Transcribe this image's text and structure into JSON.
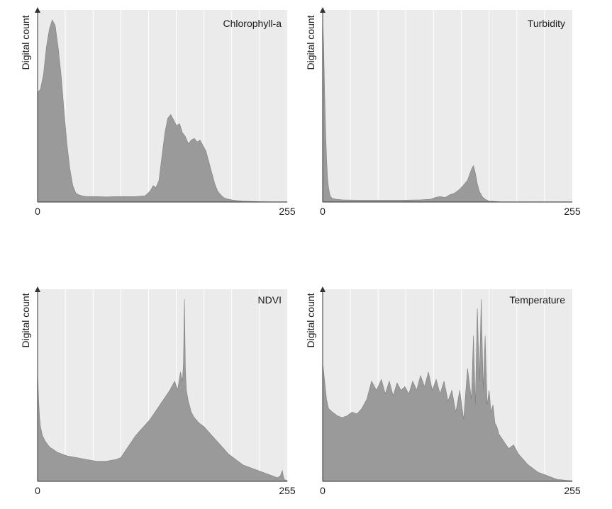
{
  "chart_data": [
    {
      "type": "area",
      "title": "Chlorophyll-a",
      "ylabel": "Digital count",
      "xlabel": "",
      "xlim": [
        0,
        255
      ],
      "x_tick_labels": [
        "0",
        "255"
      ],
      "grid": "vertical",
      "fill_color": "#9a9a9a",
      "background_color": "#ebebeb",
      "x": [
        0,
        3,
        6,
        9,
        12,
        15,
        18,
        21,
        24,
        27,
        30,
        33,
        36,
        39,
        42,
        45,
        50,
        60,
        70,
        80,
        90,
        100,
        110,
        115,
        118,
        121,
        124,
        127,
        130,
        133,
        136,
        139,
        142,
        145,
        148,
        151,
        154,
        157,
        160,
        163,
        166,
        169,
        172,
        175,
        178,
        181,
        184,
        187,
        190,
        195,
        200,
        210,
        220,
        230,
        240,
        255
      ],
      "values": [
        0.6,
        0.62,
        0.7,
        0.85,
        0.95,
        1.0,
        0.97,
        0.85,
        0.7,
        0.5,
        0.32,
        0.18,
        0.09,
        0.05,
        0.04,
        0.035,
        0.03,
        0.03,
        0.028,
        0.03,
        0.03,
        0.03,
        0.035,
        0.06,
        0.09,
        0.08,
        0.12,
        0.25,
        0.38,
        0.46,
        0.48,
        0.45,
        0.42,
        0.43,
        0.38,
        0.36,
        0.32,
        0.34,
        0.35,
        0.33,
        0.34,
        0.31,
        0.28,
        0.22,
        0.16,
        0.1,
        0.06,
        0.04,
        0.025,
        0.015,
        0.01,
        0.005,
        0.003,
        0.002,
        0.001,
        0.001
      ]
    },
    {
      "type": "area",
      "title": "Turbidity",
      "ylabel": "Digital count",
      "xlabel": "",
      "xlim": [
        0,
        255
      ],
      "x_tick_labels": [
        "0",
        "255"
      ],
      "grid": "vertical",
      "fill_color": "#9a9a9a",
      "background_color": "#ebebeb",
      "x": [
        0,
        1,
        2,
        3,
        4,
        5,
        6,
        7,
        8,
        10,
        14,
        20,
        40,
        60,
        80,
        100,
        110,
        115,
        120,
        125,
        130,
        135,
        140,
        145,
        148,
        150,
        152,
        154,
        156,
        158,
        160,
        163,
        166,
        170,
        180,
        200,
        255
      ],
      "values": [
        1.0,
        0.85,
        0.6,
        0.4,
        0.24,
        0.13,
        0.08,
        0.05,
        0.03,
        0.02,
        0.015,
        0.012,
        0.01,
        0.01,
        0.01,
        0.012,
        0.015,
        0.025,
        0.03,
        0.025,
        0.04,
        0.05,
        0.07,
        0.1,
        0.12,
        0.15,
        0.18,
        0.2,
        0.16,
        0.1,
        0.06,
        0.03,
        0.015,
        0.005,
        0.002,
        0.001,
        0.001
      ]
    },
    {
      "type": "area",
      "title": "NDVI",
      "ylabel": "Digital count",
      "xlabel": "",
      "xlim": [
        0,
        255
      ],
      "x_tick_labels": [
        "0",
        "255"
      ],
      "grid": "vertical",
      "fill_color": "#9a9a9a",
      "background_color": "#ebebeb",
      "x": [
        0,
        1,
        2,
        3,
        5,
        8,
        12,
        20,
        30,
        40,
        50,
        60,
        70,
        80,
        85,
        90,
        95,
        100,
        105,
        110,
        115,
        120,
        125,
        130,
        135,
        140,
        143,
        146,
        148,
        149,
        150,
        151,
        152,
        154,
        157,
        160,
        165,
        170,
        175,
        180,
        185,
        190,
        195,
        200,
        205,
        210,
        220,
        230,
        240,
        245,
        248,
        250,
        251,
        252,
        255
      ],
      "values": [
        0.6,
        0.45,
        0.35,
        0.3,
        0.25,
        0.22,
        0.19,
        0.16,
        0.14,
        0.13,
        0.12,
        0.11,
        0.11,
        0.12,
        0.13,
        0.17,
        0.21,
        0.25,
        0.28,
        0.31,
        0.34,
        0.38,
        0.42,
        0.46,
        0.5,
        0.55,
        0.5,
        0.6,
        0.55,
        0.65,
        1.0,
        0.62,
        0.5,
        0.44,
        0.38,
        0.35,
        0.32,
        0.3,
        0.27,
        0.24,
        0.21,
        0.18,
        0.15,
        0.13,
        0.11,
        0.09,
        0.07,
        0.05,
        0.03,
        0.02,
        0.03,
        0.06,
        0.03,
        0.01,
        0.005
      ]
    },
    {
      "type": "area",
      "title": "Temperature",
      "ylabel": "Digital count",
      "xlabel": "",
      "xlim": [
        0,
        255
      ],
      "x_tick_labels": [
        "0",
        "255"
      ],
      "grid": "vertical",
      "fill_color": "#9a9a9a",
      "background_color": "#ebebeb",
      "x": [
        0,
        2,
        4,
        6,
        10,
        15,
        20,
        25,
        30,
        35,
        40,
        45,
        50,
        55,
        60,
        64,
        68,
        72,
        76,
        80,
        84,
        88,
        92,
        96,
        100,
        104,
        108,
        112,
        116,
        120,
        124,
        128,
        132,
        136,
        140,
        144,
        148,
        152,
        154,
        156,
        158,
        160,
        162,
        164,
        166,
        168,
        170,
        172,
        174,
        176,
        178,
        180,
        185,
        190,
        195,
        200,
        205,
        210,
        215,
        220,
        225,
        230,
        235,
        240,
        245,
        250,
        255
      ],
      "values": [
        0.65,
        0.55,
        0.45,
        0.4,
        0.38,
        0.36,
        0.35,
        0.36,
        0.38,
        0.37,
        0.4,
        0.45,
        0.55,
        0.5,
        0.56,
        0.48,
        0.55,
        0.47,
        0.54,
        0.5,
        0.52,
        0.48,
        0.55,
        0.5,
        0.58,
        0.52,
        0.6,
        0.5,
        0.56,
        0.48,
        0.55,
        0.44,
        0.5,
        0.38,
        0.5,
        0.34,
        0.62,
        0.45,
        0.8,
        0.42,
        0.95,
        0.55,
        1.0,
        0.5,
        0.8,
        0.42,
        0.5,
        0.38,
        0.42,
        0.32,
        0.3,
        0.26,
        0.22,
        0.18,
        0.2,
        0.15,
        0.12,
        0.09,
        0.07,
        0.05,
        0.04,
        0.03,
        0.02,
        0.01,
        0.008,
        0.005,
        0.003
      ]
    }
  ]
}
